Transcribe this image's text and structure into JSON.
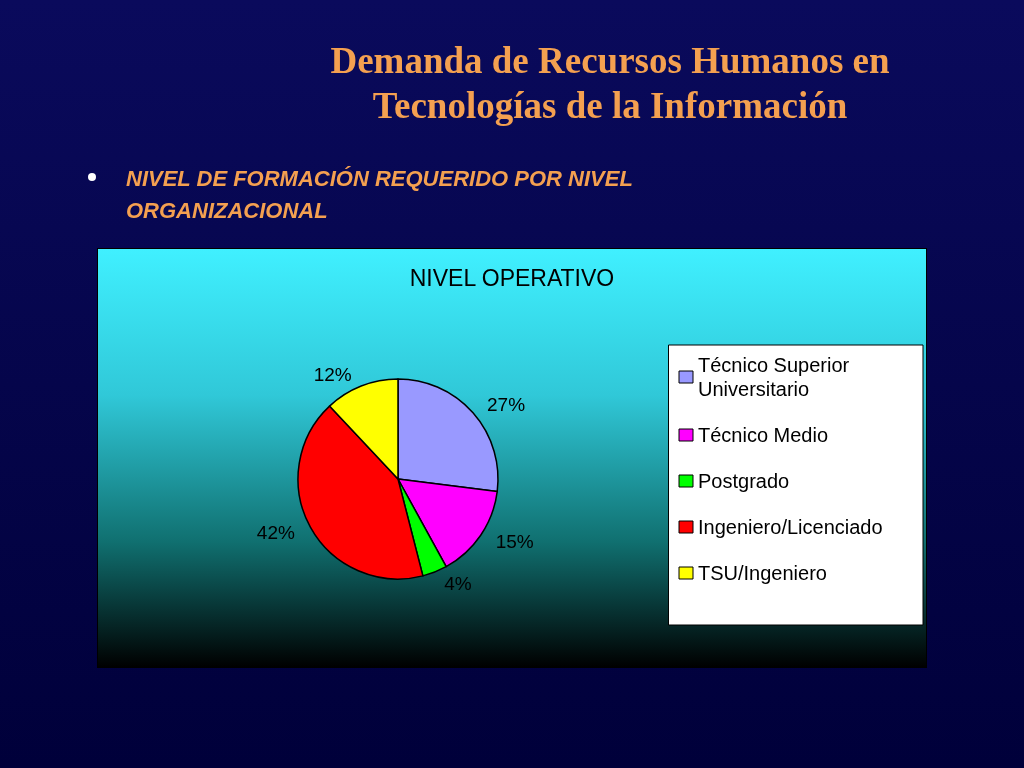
{
  "chart_data": {
    "type": "pie",
    "title": "Demanda de Recursos Humanos en Tecnologías de la Información",
    "subtitle": "NIVEL DE FORMACIÓN REQUERIDO POR NIVEL ORGANIZACIONAL",
    "annotations": [
      "NIVEL OPERATIVO"
    ],
    "categories": [
      "Técnico Superior Universitario",
      "Técnico Medio",
      "Postgrado",
      "Ingeniero/Licenciado",
      "TSU/Ingeniero"
    ],
    "values": [
      27,
      15,
      4,
      42,
      12
    ],
    "colors": [
      "#9999ff",
      "#ff00ff",
      "#00ff00",
      "#ff0000",
      "#ffff00"
    ],
    "value_labels": [
      "27%",
      "15%",
      "4%",
      "42%",
      "12%"
    ],
    "legend": "right"
  }
}
